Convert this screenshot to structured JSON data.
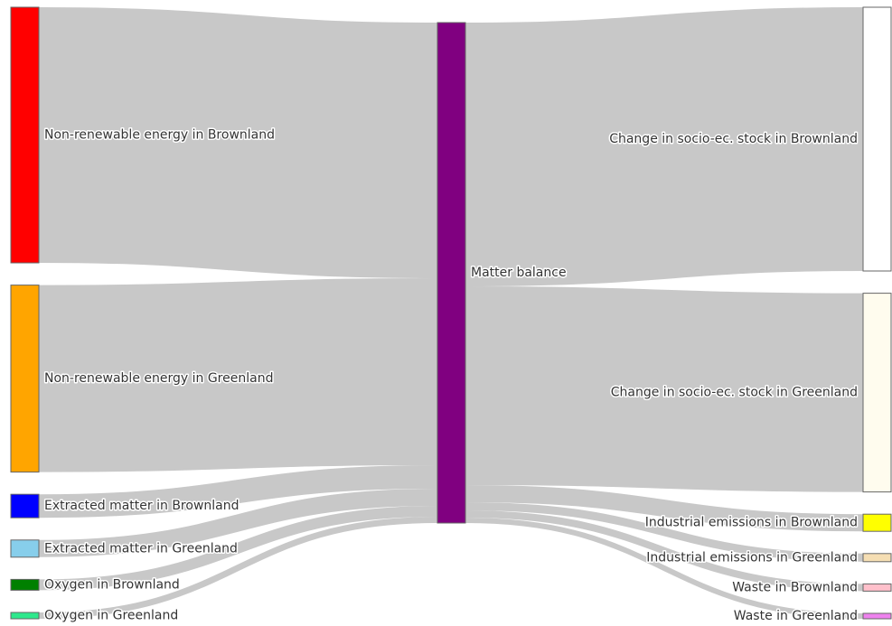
{
  "chart_data": {
    "type": "sankey",
    "nodes": [
      {
        "name": "Non-renewable energy in Brownland",
        "color": "#ff0000"
      },
      {
        "name": "Non-renewable energy in Greenland",
        "color": "#ffa500"
      },
      {
        "name": "Extracted matter in Brownland",
        "color": "#0000ff"
      },
      {
        "name": "Extracted matter in Greenland",
        "color": "#87ceeb"
      },
      {
        "name": "Oxygen in Brownland",
        "color": "#008000"
      },
      {
        "name": "Oxygen in Greenland",
        "color": "#2ee88c"
      },
      {
        "name": "Matter balance",
        "color": "#800080"
      },
      {
        "name": "Change in socio-ec. stock in Brownland",
        "color": "#ffffff"
      },
      {
        "name": "Change in socio-ec. stock in Greenland",
        "color": "#fffcee"
      },
      {
        "name": "Industrial emissions in Brownland",
        "color": "#ffff00"
      },
      {
        "name": "Industrial emissions in Greenland",
        "color": "#f5deb3"
      },
      {
        "name": "Waste in Brownland",
        "color": "#ffc0cb"
      },
      {
        "name": "Waste in Greenland",
        "color": "#ee82ee"
      }
    ],
    "links": [
      {
        "source": 0,
        "target": 6,
        "value": 283
      },
      {
        "source": 1,
        "target": 6,
        "value": 207
      },
      {
        "source": 2,
        "target": 6,
        "value": 26
      },
      {
        "source": 3,
        "target": 6,
        "value": 19
      },
      {
        "source": 4,
        "target": 6,
        "value": 12
      },
      {
        "source": 5,
        "target": 6,
        "value": 7
      },
      {
        "source": 6,
        "target": 7,
        "value": 292
      },
      {
        "source": 6,
        "target": 8,
        "value": 220
      },
      {
        "source": 6,
        "target": 9,
        "value": 19
      },
      {
        "source": 6,
        "target": 10,
        "value": 9
      },
      {
        "source": 6,
        "target": 11,
        "value": 8
      },
      {
        "source": 6,
        "target": 12,
        "value": 6
      }
    ]
  }
}
